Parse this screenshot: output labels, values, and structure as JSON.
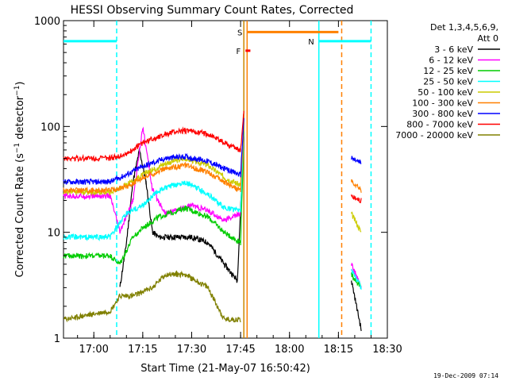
{
  "chart_data": {
    "type": "line",
    "title": "HESSI Observing Summary Count Rates, Corrected",
    "xlabel": "Start Time (21-May-07 16:50:42)",
    "ylabel": "Corrected Count Rate (s⁻¹ detector⁻¹)",
    "y_scale": "log",
    "ylim": [
      1,
      1000
    ],
    "xlim": [
      "16:50:42",
      "18:30:00"
    ],
    "x_ticks": [
      "17:00",
      "17:15",
      "17:30",
      "17:45",
      "18:00",
      "18:15",
      "18:30"
    ],
    "y_ticks": [
      "1",
      "10",
      "100",
      "1000"
    ],
    "grid": false,
    "legend_position": "right",
    "legend_header": [
      "Det 1,3,4,5,6,9,",
      "Att 0"
    ],
    "series": [
      {
        "name": "3 - 6 keV",
        "color": "#000000",
        "points": [
          [
            "17:08",
            "3"
          ],
          [
            "17:10",
            "8"
          ],
          [
            "17:12",
            "30"
          ],
          [
            "17:14",
            "60"
          ],
          [
            "17:16",
            "30"
          ],
          [
            "17:18",
            "10"
          ],
          [
            "17:20",
            "9"
          ],
          [
            "17:25",
            "9"
          ],
          [
            "17:30",
            "9"
          ],
          [
            "17:35",
            "8"
          ],
          [
            "17:40",
            "5"
          ],
          [
            "17:44",
            "3.5"
          ],
          [
            "17:46",
            "80"
          ],
          [
            "18:19",
            "3.5"
          ],
          [
            "18:22",
            "1.2"
          ]
        ]
      },
      {
        "name": "6 - 12 keV",
        "color": "#ff00ff",
        "points": [
          [
            "16:50:42",
            "22"
          ],
          [
            "17:05",
            "22"
          ],
          [
            "17:08",
            "10"
          ],
          [
            "17:12",
            "20"
          ],
          [
            "17:15",
            "100"
          ],
          [
            "17:18",
            "25"
          ],
          [
            "17:22",
            "15"
          ],
          [
            "17:30",
            "18"
          ],
          [
            "17:35",
            "16"
          ],
          [
            "17:40",
            "13"
          ],
          [
            "17:45",
            "15"
          ],
          [
            "17:46",
            "80"
          ],
          [
            "18:19",
            "5"
          ],
          [
            "18:22",
            "3"
          ]
        ]
      },
      {
        "name": "12 - 25 keV",
        "color": "#00cc00",
        "points": [
          [
            "16:50:42",
            "6"
          ],
          [
            "17:05",
            "6"
          ],
          [
            "17:08",
            "5"
          ],
          [
            "17:12",
            "9"
          ],
          [
            "17:15",
            "11"
          ],
          [
            "17:20",
            "14"
          ],
          [
            "17:28",
            "17"
          ],
          [
            "17:35",
            "14"
          ],
          [
            "17:40",
            "10"
          ],
          [
            "17:45",
            "8"
          ],
          [
            "17:46",
            "90"
          ],
          [
            "18:19",
            "4"
          ],
          [
            "18:22",
            "3"
          ]
        ]
      },
      {
        "name": "25 - 50 keV",
        "color": "#00ffff",
        "points": [
          [
            "16:50:42",
            "9"
          ],
          [
            "17:05",
            "9"
          ],
          [
            "17:10",
            "15"
          ],
          [
            "17:15",
            "18"
          ],
          [
            "17:20",
            "25"
          ],
          [
            "17:28",
            "30"
          ],
          [
            "17:35",
            "23"
          ],
          [
            "17:40",
            "17"
          ],
          [
            "17:45",
            "16"
          ],
          [
            "17:46",
            "100"
          ],
          [
            "18:19",
            "4.5"
          ],
          [
            "18:22",
            "3"
          ]
        ]
      },
      {
        "name": "50 - 100 keV",
        "color": "#cccc00",
        "points": [
          [
            "16:50:42",
            "24"
          ],
          [
            "17:05",
            "24"
          ],
          [
            "17:10",
            "28"
          ],
          [
            "17:15",
            "35"
          ],
          [
            "17:22",
            "45"
          ],
          [
            "17:28",
            "50"
          ],
          [
            "17:35",
            "43"
          ],
          [
            "17:40",
            "33"
          ],
          [
            "17:45",
            "28"
          ],
          [
            "17:46",
            "100"
          ],
          [
            "18:19",
            "15"
          ],
          [
            "18:22",
            "10"
          ]
        ]
      },
      {
        "name": "100 - 300 keV",
        "color": "#ff8000",
        "points": [
          [
            "16:50:42",
            "25"
          ],
          [
            "17:05",
            "25"
          ],
          [
            "17:10",
            "27"
          ],
          [
            "17:15",
            "33"
          ],
          [
            "17:22",
            "40"
          ],
          [
            "17:28",
            "43"
          ],
          [
            "17:35",
            "37"
          ],
          [
            "17:40",
            "30"
          ],
          [
            "17:45",
            "25"
          ],
          [
            "17:46",
            "110"
          ],
          [
            "18:19",
            "30"
          ],
          [
            "18:22",
            "25"
          ]
        ]
      },
      {
        "name": "300 - 800 keV",
        "color": "#0000ff",
        "points": [
          [
            "16:50:42",
            "30"
          ],
          [
            "17:05",
            "30"
          ],
          [
            "17:10",
            "35"
          ],
          [
            "17:15",
            "42"
          ],
          [
            "17:22",
            "50"
          ],
          [
            "17:28",
            "52"
          ],
          [
            "17:35",
            "47"
          ],
          [
            "17:40",
            "40"
          ],
          [
            "17:45",
            "35"
          ],
          [
            "17:46",
            "120"
          ],
          [
            "18:19",
            "50"
          ],
          [
            "18:22",
            "45"
          ]
        ]
      },
      {
        "name": "800 - 7000 keV",
        "color": "#ff0000",
        "points": [
          [
            "16:50:42",
            "50"
          ],
          [
            "17:05",
            "50"
          ],
          [
            "17:10",
            "55"
          ],
          [
            "17:15",
            "70"
          ],
          [
            "17:22",
            "85"
          ],
          [
            "17:28",
            "92"
          ],
          [
            "17:35",
            "85"
          ],
          [
            "17:40",
            "70"
          ],
          [
            "17:45",
            "60"
          ],
          [
            "17:46",
            "140"
          ],
          [
            "18:19",
            "22"
          ],
          [
            "18:22",
            "20"
          ]
        ]
      },
      {
        "name": "7000 - 20000 keV",
        "color": "#808000",
        "points": [
          [
            "16:50:42",
            "1.5"
          ],
          [
            "17:05",
            "1.8"
          ],
          [
            "17:08",
            "2.5"
          ],
          [
            "17:12",
            "2.5"
          ],
          [
            "17:18",
            "3"
          ],
          [
            "17:22",
            "4"
          ],
          [
            "17:28",
            "4"
          ],
          [
            "17:35",
            "3"
          ],
          [
            "17:40",
            "1.5"
          ],
          [
            "17:45",
            "1.5"
          ]
        ]
      }
    ],
    "attenuator_segments": [
      {
        "label": "",
        "color": "#00ffff",
        "y": 640,
        "start": "16:50:42",
        "end": "17:07"
      },
      {
        "label": "N",
        "color": "#00ffff",
        "y": 640,
        "start": "18:09",
        "end": "18:25"
      }
    ],
    "flag_segments": [
      {
        "label": "S",
        "color": "#ff8000",
        "y": 780,
        "start": "17:47",
        "end": "18:15"
      },
      {
        "label": "F",
        "color": "#ff0000",
        "y": 520,
        "start": "17:46:30",
        "end": "17:48"
      }
    ],
    "vertical_markers": [
      {
        "time": "17:07",
        "color": "#00ffff",
        "style": "dashed"
      },
      {
        "time": "17:46",
        "color": "#cc8800",
        "style": "solid"
      },
      {
        "time": "17:47",
        "color": "#ff8000",
        "style": "solid"
      },
      {
        "time": "18:09",
        "color": "#00ffff",
        "style": "solid"
      },
      {
        "time": "18:16",
        "color": "#ff8000",
        "style": "dashed"
      },
      {
        "time": "18:25",
        "color": "#00ffff",
        "style": "dashed"
      }
    ],
    "footer": "19-Dec-2009 07:14"
  }
}
